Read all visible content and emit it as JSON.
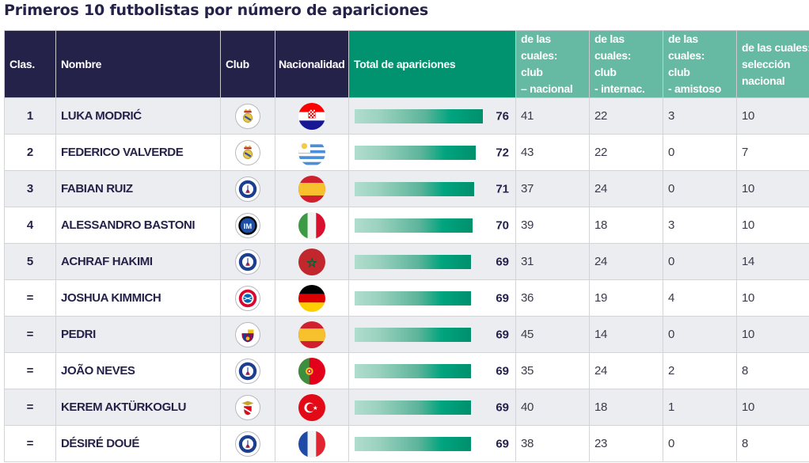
{
  "title": "Primeros 10 futbolistas por número de apariciones",
  "chart_data": {
    "type": "table",
    "title": "Primeros 10 futbolistas por número de apariciones",
    "columns": [
      "Clas.",
      "Nombre",
      "Club",
      "Nacionalidad",
      "Total de apariciones",
      "de las cuales: club – nacional",
      "de las cuales: club - internac.",
      "de las cuales: club - amistoso",
      "de las cuales: selección nacional"
    ],
    "bar_column": "Total de apariciones",
    "bar_scale_max": 76,
    "rows": [
      {
        "rank": "1",
        "name": "Luka Modrić",
        "club": "Real Madrid",
        "nationality": "Croatia",
        "total": 76,
        "club_nacional": 41,
        "club_internac": 22,
        "club_amistoso": 3,
        "seleccion": 10
      },
      {
        "rank": "2",
        "name": "Federico Valverde",
        "club": "Real Madrid",
        "nationality": "Uruguay",
        "total": 72,
        "club_nacional": 43,
        "club_internac": 22,
        "club_amistoso": 0,
        "seleccion": 7
      },
      {
        "rank": "3",
        "name": "Fabian Ruiz",
        "club": "Paris Saint-Germain",
        "nationality": "Spain",
        "total": 71,
        "club_nacional": 37,
        "club_internac": 24,
        "club_amistoso": 0,
        "seleccion": 10
      },
      {
        "rank": "4",
        "name": "Alessandro Bastoni",
        "club": "Inter",
        "nationality": "Italy",
        "total": 70,
        "club_nacional": 39,
        "club_internac": 18,
        "club_amistoso": 3,
        "seleccion": 10
      },
      {
        "rank": "5",
        "name": "Achraf Hakimi",
        "club": "Paris Saint-Germain",
        "nationality": "Morocco",
        "total": 69,
        "club_nacional": 31,
        "club_internac": 24,
        "club_amistoso": 0,
        "seleccion": 14
      },
      {
        "rank": "=",
        "name": "Joshua Kimmich",
        "club": "Bayern München",
        "nationality": "Germany",
        "total": 69,
        "club_nacional": 36,
        "club_internac": 19,
        "club_amistoso": 4,
        "seleccion": 10
      },
      {
        "rank": "=",
        "name": "Pedri",
        "club": "FC Barcelona",
        "nationality": "Spain",
        "total": 69,
        "club_nacional": 45,
        "club_internac": 14,
        "club_amistoso": 0,
        "seleccion": 10
      },
      {
        "rank": "=",
        "name": "João Neves",
        "club": "Paris Saint-Germain",
        "nationality": "Portugal",
        "total": 69,
        "club_nacional": 35,
        "club_internac": 24,
        "club_amistoso": 2,
        "seleccion": 8
      },
      {
        "rank": "=",
        "name": "Kerem Aktürkoglu",
        "club": "Benfica",
        "nationality": "Turkey",
        "total": 69,
        "club_nacional": 40,
        "club_internac": 18,
        "club_amistoso": 1,
        "seleccion": 10
      },
      {
        "rank": "=",
        "name": "Désiré Doué",
        "club": "Paris Saint-Germain",
        "nationality": "France",
        "total": 69,
        "club_nacional": 38,
        "club_internac": 23,
        "club_amistoso": 0,
        "seleccion": 8
      }
    ]
  },
  "header": {
    "rank": "Clas.",
    "name": "Nombre",
    "club": "Club",
    "nationality": "Nacionalidad",
    "total": "Total de apariciones",
    "c1": [
      "de las cuales:",
      "club",
      "– nacional"
    ],
    "c2": [
      "de las cuales:",
      "club",
      "- internac."
    ],
    "c3": [
      "de las cuales:",
      "club",
      "- amistoso"
    ],
    "c4": [
      "de las cuales:",
      "selección",
      "nacional"
    ]
  },
  "colors": {
    "header_navy": "#25224a",
    "header_total_green": "#019270",
    "header_sub_green": "#66b9a2",
    "bar_start": "#b1ddce",
    "bar_end": "#00906d",
    "row_alt": "#ecedf0",
    "text_navy": "#25224a"
  },
  "icons": {
    "Real Madrid": "real-madrid-crest-icon",
    "Paris Saint-Germain": "psg-crest-icon",
    "Inter": "inter-crest-icon",
    "Bayern München": "bayern-crest-icon",
    "FC Barcelona": "barcelona-crest-icon",
    "Benfica": "benfica-crest-icon",
    "Croatia": "croatia-flag-icon",
    "Uruguay": "uruguay-flag-icon",
    "Spain": "spain-flag-icon",
    "Italy": "italy-flag-icon",
    "Morocco": "morocco-flag-icon",
    "Germany": "germany-flag-icon",
    "Portugal": "portugal-flag-icon",
    "Turkey": "turkey-flag-icon",
    "France": "france-flag-icon"
  }
}
